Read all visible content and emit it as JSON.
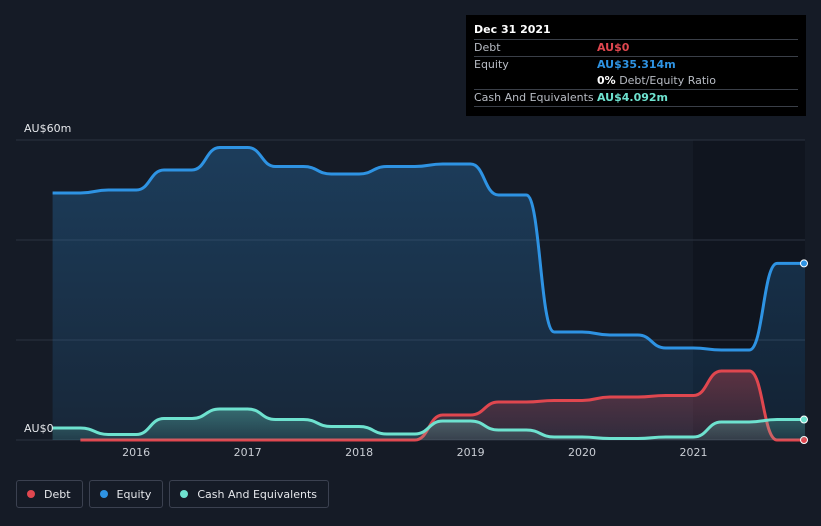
{
  "colors": {
    "debt": "#e0474f",
    "equity": "#2e93e3",
    "cash": "#6ee2cf",
    "background": "#151b26",
    "grid": "#2c3340"
  },
  "tooltip": {
    "date": "Dec 31 2021",
    "debt_label": "Debt",
    "debt_value": "AU$0",
    "equity_label": "Equity",
    "equity_value": "AU$35.314m",
    "ratio_value": "0%",
    "ratio_label": "Debt/Equity Ratio",
    "cash_label": "Cash And Equivalents",
    "cash_value": "AU$4.092m"
  },
  "legend": {
    "debt": "Debt",
    "equity": "Equity",
    "cash": "Cash And Equivalents"
  },
  "chart_data": {
    "type": "area",
    "ylim": [
      0,
      60
    ],
    "y_tick_labels": [
      {
        "value": 60,
        "label": "AU$60m"
      },
      {
        "value": 0,
        "label": "AU$0"
      }
    ],
    "gridlines": [
      0,
      20,
      40,
      60
    ],
    "xlim": [
      2015.2,
      2022.0
    ],
    "x_ticks": [
      2016,
      2017,
      2018,
      2019,
      2020,
      2021
    ],
    "series": [
      {
        "name": "Equity",
        "key": "equity",
        "points": [
          [
            2015.25,
            49.4
          ],
          [
            2015.5,
            49.4
          ],
          [
            2015.75,
            50.0
          ],
          [
            2016.0,
            50.0
          ],
          [
            2016.25,
            54.0
          ],
          [
            2016.5,
            54.0
          ],
          [
            2016.75,
            58.5
          ],
          [
            2017.0,
            58.5
          ],
          [
            2017.25,
            54.7
          ],
          [
            2017.5,
            54.7
          ],
          [
            2017.75,
            53.2
          ],
          [
            2018.0,
            53.2
          ],
          [
            2018.25,
            54.7
          ],
          [
            2018.5,
            54.7
          ],
          [
            2018.75,
            55.2
          ],
          [
            2019.0,
            55.2
          ],
          [
            2019.25,
            49.0
          ],
          [
            2019.5,
            49.0
          ],
          [
            2019.75,
            21.6
          ],
          [
            2020.0,
            21.6
          ],
          [
            2020.25,
            21.0
          ],
          [
            2020.5,
            21.0
          ],
          [
            2020.75,
            18.4
          ],
          [
            2021.0,
            18.4
          ],
          [
            2021.25,
            18.0
          ],
          [
            2021.5,
            18.0
          ],
          [
            2021.75,
            35.314
          ],
          [
            2022.0,
            35.314
          ]
        ]
      },
      {
        "name": "Debt",
        "key": "debt",
        "points": [
          [
            2015.5,
            0
          ],
          [
            2018.5,
            0
          ],
          [
            2018.75,
            5.0
          ],
          [
            2019.0,
            5.0
          ],
          [
            2019.25,
            7.6
          ],
          [
            2019.5,
            7.6
          ],
          [
            2019.75,
            7.9
          ],
          [
            2020.0,
            7.9
          ],
          [
            2020.25,
            8.6
          ],
          [
            2020.5,
            8.6
          ],
          [
            2020.75,
            8.9
          ],
          [
            2021.0,
            8.9
          ],
          [
            2021.25,
            13.8
          ],
          [
            2021.5,
            13.8
          ],
          [
            2021.75,
            0
          ],
          [
            2022.0,
            0
          ]
        ]
      },
      {
        "name": "Cash And Equivalents",
        "key": "cash",
        "points": [
          [
            2015.25,
            2.4
          ],
          [
            2015.5,
            2.4
          ],
          [
            2015.75,
            1.1
          ],
          [
            2016.0,
            1.1
          ],
          [
            2016.25,
            4.3
          ],
          [
            2016.5,
            4.3
          ],
          [
            2016.75,
            6.2
          ],
          [
            2017.0,
            6.2
          ],
          [
            2017.25,
            4.1
          ],
          [
            2017.5,
            4.1
          ],
          [
            2017.75,
            2.7
          ],
          [
            2018.0,
            2.7
          ],
          [
            2018.25,
            1.2
          ],
          [
            2018.5,
            1.2
          ],
          [
            2018.75,
            3.8
          ],
          [
            2019.0,
            3.8
          ],
          [
            2019.25,
            2.0
          ],
          [
            2019.5,
            2.0
          ],
          [
            2019.75,
            0.6
          ],
          [
            2020.0,
            0.6
          ],
          [
            2020.25,
            0.3
          ],
          [
            2020.5,
            0.3
          ],
          [
            2020.75,
            0.6
          ],
          [
            2021.0,
            0.6
          ],
          [
            2021.25,
            3.6
          ],
          [
            2021.5,
            3.6
          ],
          [
            2021.75,
            4.092
          ],
          [
            2022.0,
            4.092
          ]
        ]
      }
    ]
  }
}
